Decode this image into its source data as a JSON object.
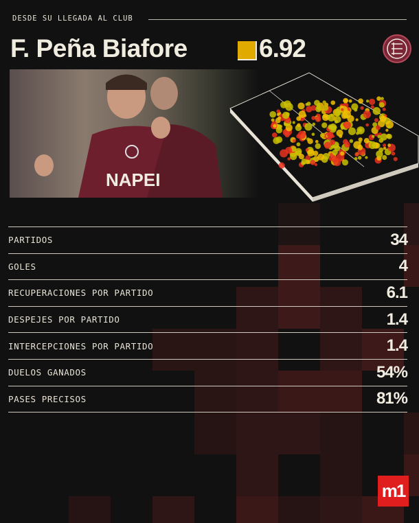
{
  "header": {
    "kicker": "DESDE SU LLEGADA AL CLUB",
    "player_name": "F. Peña Biafore",
    "rating": "6.92",
    "rating_color": "#e0aa00"
  },
  "photo": {
    "shirt_text": "NAPEI"
  },
  "stats": [
    {
      "label": "PARTIDOS",
      "value": "34"
    },
    {
      "label": "GOLES",
      "value": "4"
    },
    {
      "label": "RECUPERACIONES POR PARTIDO",
      "value": "6.1"
    },
    {
      "label": "DESPEJES POR PARTIDO",
      "value": "1.4"
    },
    {
      "label": "INTERCEPCIONES POR PARTIDO",
      "value": "1.4"
    },
    {
      "label": "DUELOS GANADOS",
      "value": "54%"
    },
    {
      "label": "PASES PRECISOS",
      "value": "81%"
    }
  ],
  "brand": {
    "logo_text": "m1",
    "logo_color": "#e01e1e",
    "club_color": "#7a2636"
  }
}
